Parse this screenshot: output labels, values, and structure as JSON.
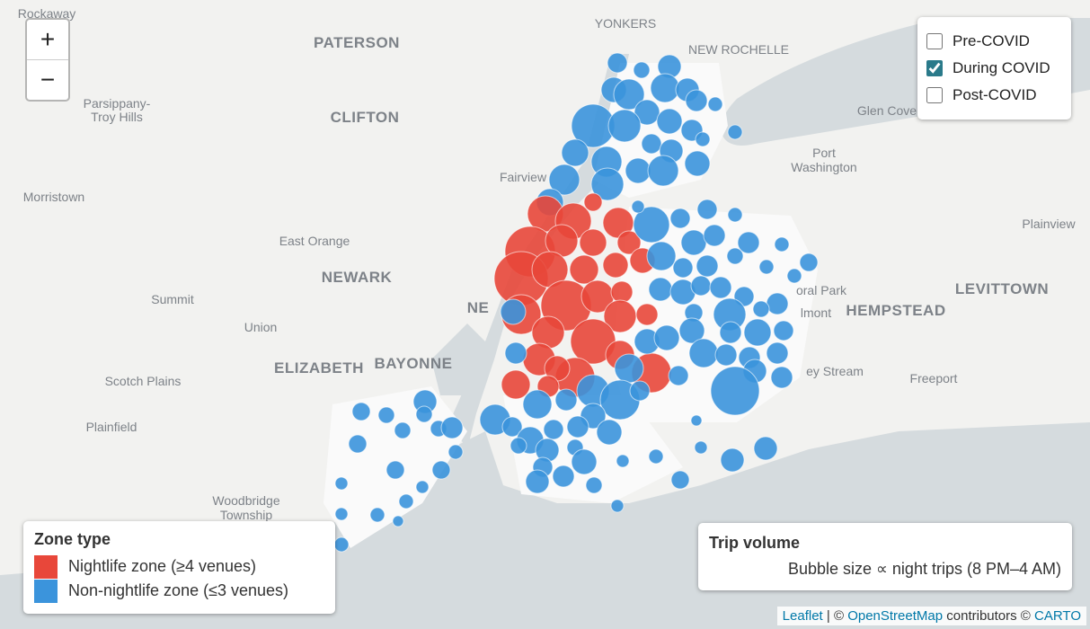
{
  "zoom": {
    "in": "+",
    "out": "−"
  },
  "layers": [
    {
      "label": "Pre-COVID",
      "checked": false
    },
    {
      "label": "During COVID",
      "checked": true
    },
    {
      "label": "Post-COVID",
      "checked": false
    }
  ],
  "map_labels": [
    "Rockaway",
    "PATERSON",
    "YONKERS",
    "NEW ROCHELLE",
    "Parsippany-",
    "Troy Hills",
    "CLIFTON",
    "Glen Cove",
    "Port",
    "Washington",
    "Fairview",
    "Morristown",
    "East Orange",
    "NEWARK",
    "Plainview",
    "Summit",
    "Union",
    "oral Park",
    "lmont",
    "HEMPSTEAD",
    "LEVITTOWN",
    "ELIZABETH",
    "BAYONNE",
    "ey Stream",
    "Scotch Plains",
    "Freeport",
    "Plainfield",
    "Woodbridge",
    "Township",
    "NE"
  ],
  "zone_legend": {
    "title": "Zone type",
    "items": [
      {
        "label": "Nightlife zone (≥4 venues)",
        "color": "#e8473a"
      },
      {
        "label": "Non-nightlife zone (≤3 venues)",
        "color": "#3b94dc"
      }
    ]
  },
  "size_legend": {
    "title": "Trip volume",
    "text": "Bubble size ∝ night trips (8 PM–4 AM)"
  },
  "attribution": {
    "leaflet": "Leaflet",
    "sep": "| ©",
    "osm": "OpenStreetMap",
    "mid": "contributors ©",
    "carto": "CARTO"
  }
}
